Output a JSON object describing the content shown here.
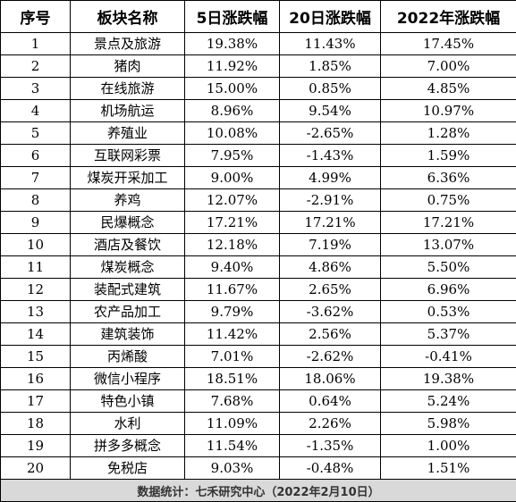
{
  "table": {
    "headers": [
      "序号",
      "板块名称",
      "5日涨跌幅",
      "20日涨跌幅",
      "2022年涨跌幅"
    ],
    "rows": [
      [
        "1",
        "景点及旅游",
        "19.38%",
        "11.43%",
        "17.45%"
      ],
      [
        "2",
        "猪肉",
        "11.92%",
        "1.85%",
        "7.00%"
      ],
      [
        "3",
        "在线旅游",
        "15.00%",
        "0.85%",
        "4.85%"
      ],
      [
        "4",
        "机场航运",
        "8.96%",
        "9.54%",
        "10.97%"
      ],
      [
        "5",
        "养殖业",
        "10.08%",
        "-2.65%",
        "1.28%"
      ],
      [
        "6",
        "互联网彩票",
        "7.95%",
        "-1.43%",
        "1.59%"
      ],
      [
        "7",
        "煤炭开采加工",
        "9.00%",
        "4.99%",
        "6.36%"
      ],
      [
        "8",
        "养鸡",
        "12.07%",
        "-2.91%",
        "0.75%"
      ],
      [
        "9",
        "民爆概念",
        "17.21%",
        "17.21%",
        "17.21%"
      ],
      [
        "10",
        "酒店及餐饮",
        "12.18%",
        "7.19%",
        "13.07%"
      ],
      [
        "11",
        "煤炭概念",
        "9.40%",
        "4.86%",
        "5.50%"
      ],
      [
        "12",
        "装配式建筑",
        "11.67%",
        "2.65%",
        "6.96%"
      ],
      [
        "13",
        "农产品加工",
        "9.79%",
        "-3.62%",
        "0.53%"
      ],
      [
        "14",
        "建筑装饰",
        "11.42%",
        "2.56%",
        "5.37%"
      ],
      [
        "15",
        "丙烯酸",
        "7.01%",
        "-2.62%",
        "-0.41%"
      ],
      [
        "16",
        "微信小程序",
        "18.51%",
        "18.06%",
        "19.38%"
      ],
      [
        "17",
        "特色小镇",
        "7.68%",
        "0.64%",
        "5.24%"
      ],
      [
        "18",
        "水利",
        "11.09%",
        "2.26%",
        "5.98%"
      ],
      [
        "19",
        "拼多多概念",
        "11.54%",
        "-1.35%",
        "1.00%"
      ],
      [
        "20",
        "免税店",
        "9.03%",
        "-0.48%",
        "1.51%"
      ]
    ],
    "footer": "数据统计：七禾研究中心（2022年2月10日）"
  }
}
